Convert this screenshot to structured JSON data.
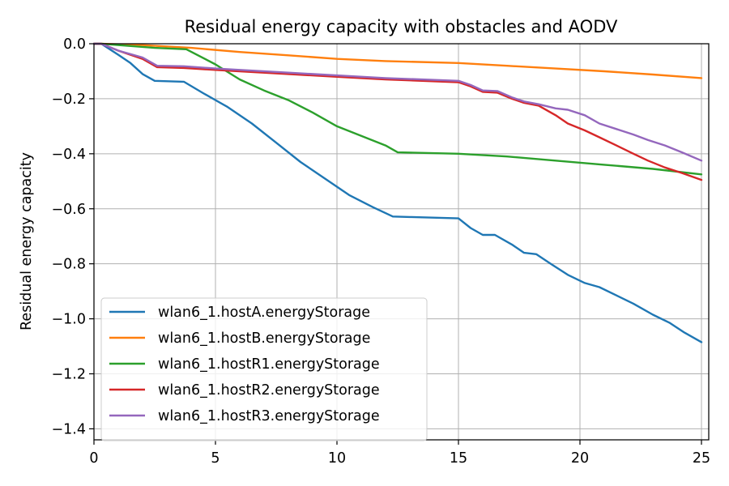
{
  "chart_data": {
    "type": "line",
    "title": "Residual energy capacity with obstacles and AODV",
    "xlabel": "",
    "ylabel": "Residual energy capacity",
    "xlim": [
      0,
      25.3
    ],
    "ylim": [
      -1.44,
      0.0
    ],
    "xticks": [
      0,
      5,
      10,
      15,
      20,
      25
    ],
    "yticks": [
      0.0,
      -0.2,
      -0.4,
      -0.6,
      -0.8,
      -1.0,
      -1.2,
      -1.4
    ],
    "grid": true,
    "legend_position": "lower-left",
    "series": [
      {
        "name": "wlan6_1.hostA.energyStorage",
        "color": "#1f77b4",
        "points": [
          [
            0,
            0
          ],
          [
            0.3,
            0
          ],
          [
            1,
            -0.04
          ],
          [
            1.5,
            -0.07
          ],
          [
            2,
            -0.11
          ],
          [
            2.5,
            -0.135
          ],
          [
            3.7,
            -0.138
          ],
          [
            4.5,
            -0.18
          ],
          [
            5.5,
            -0.23
          ],
          [
            6.5,
            -0.29
          ],
          [
            7.5,
            -0.36
          ],
          [
            8.5,
            -0.43
          ],
          [
            9.5,
            -0.49
          ],
          [
            10.5,
            -0.55
          ],
          [
            11.5,
            -0.595
          ],
          [
            12.3,
            -0.628
          ],
          [
            13,
            -0.63
          ],
          [
            15,
            -0.635
          ],
          [
            15.5,
            -0.67
          ],
          [
            16,
            -0.695
          ],
          [
            16.5,
            -0.695
          ],
          [
            17.2,
            -0.73
          ],
          [
            17.7,
            -0.76
          ],
          [
            18.2,
            -0.765
          ],
          [
            18.8,
            -0.8
          ],
          [
            19.5,
            -0.84
          ],
          [
            20.2,
            -0.87
          ],
          [
            20.8,
            -0.885
          ],
          [
            21.5,
            -0.915
          ],
          [
            22.2,
            -0.945
          ],
          [
            23,
            -0.985
          ],
          [
            23.7,
            -1.015
          ],
          [
            24.3,
            -1.05
          ],
          [
            25,
            -1.085
          ]
        ]
      },
      {
        "name": "wlan6_1.hostB.energyStorage",
        "color": "#ff7f0e",
        "points": [
          [
            0,
            0
          ],
          [
            0.3,
            0
          ],
          [
            2,
            -0.005
          ],
          [
            4,
            -0.015
          ],
          [
            6,
            -0.03
          ],
          [
            8,
            -0.042
          ],
          [
            10,
            -0.055
          ],
          [
            12,
            -0.063
          ],
          [
            15,
            -0.07
          ],
          [
            17,
            -0.08
          ],
          [
            19,
            -0.09
          ],
          [
            21,
            -0.1
          ],
          [
            23,
            -0.112
          ],
          [
            25,
            -0.125
          ]
        ]
      },
      {
        "name": "wlan6_1.hostR1.energyStorage",
        "color": "#2ca02c",
        "points": [
          [
            0,
            0
          ],
          [
            0.3,
            0
          ],
          [
            2.5,
            -0.015
          ],
          [
            3.8,
            -0.02
          ],
          [
            5,
            -0.075
          ],
          [
            6,
            -0.13
          ],
          [
            7,
            -0.17
          ],
          [
            8,
            -0.205
          ],
          [
            9,
            -0.25
          ],
          [
            10,
            -0.3
          ],
          [
            11,
            -0.335
          ],
          [
            12,
            -0.37
          ],
          [
            12.5,
            -0.395
          ],
          [
            15,
            -0.4
          ],
          [
            17,
            -0.41
          ],
          [
            19,
            -0.425
          ],
          [
            21,
            -0.44
          ],
          [
            23,
            -0.455
          ],
          [
            25,
            -0.475
          ]
        ]
      },
      {
        "name": "wlan6_1.hostR2.energyStorage",
        "color": "#d62728",
        "points": [
          [
            0,
            0
          ],
          [
            0.3,
            0
          ],
          [
            1,
            -0.025
          ],
          [
            2,
            -0.055
          ],
          [
            2.6,
            -0.085
          ],
          [
            3.7,
            -0.088
          ],
          [
            5,
            -0.095
          ],
          [
            6,
            -0.1
          ],
          [
            8,
            -0.11
          ],
          [
            10,
            -0.12
          ],
          [
            12,
            -0.13
          ],
          [
            15,
            -0.14
          ],
          [
            15.5,
            -0.155
          ],
          [
            16,
            -0.175
          ],
          [
            16.6,
            -0.178
          ],
          [
            17.2,
            -0.2
          ],
          [
            17.7,
            -0.215
          ],
          [
            18.3,
            -0.225
          ],
          [
            19,
            -0.26
          ],
          [
            19.5,
            -0.29
          ],
          [
            20.2,
            -0.315
          ],
          [
            20.8,
            -0.34
          ],
          [
            21.5,
            -0.37
          ],
          [
            22.2,
            -0.4
          ],
          [
            22.8,
            -0.425
          ],
          [
            23.5,
            -0.45
          ],
          [
            24.2,
            -0.47
          ],
          [
            25,
            -0.495
          ]
        ]
      },
      {
        "name": "wlan6_1.hostR3.energyStorage",
        "color": "#9467bd",
        "points": [
          [
            0,
            0
          ],
          [
            0.3,
            0
          ],
          [
            1,
            -0.025
          ],
          [
            2,
            -0.05
          ],
          [
            2.6,
            -0.08
          ],
          [
            3.7,
            -0.082
          ],
          [
            5,
            -0.09
          ],
          [
            6,
            -0.095
          ],
          [
            8,
            -0.105
          ],
          [
            10,
            -0.115
          ],
          [
            12,
            -0.125
          ],
          [
            15,
            -0.135
          ],
          [
            15.5,
            -0.15
          ],
          [
            16,
            -0.17
          ],
          [
            16.6,
            -0.172
          ],
          [
            17.2,
            -0.195
          ],
          [
            17.7,
            -0.21
          ],
          [
            18.3,
            -0.22
          ],
          [
            19,
            -0.235
          ],
          [
            19.5,
            -0.24
          ],
          [
            20.2,
            -0.26
          ],
          [
            20.8,
            -0.29
          ],
          [
            21.5,
            -0.31
          ],
          [
            22.2,
            -0.33
          ],
          [
            22.8,
            -0.35
          ],
          [
            23.5,
            -0.37
          ],
          [
            24.2,
            -0.395
          ],
          [
            25,
            -0.425
          ]
        ]
      }
    ]
  }
}
